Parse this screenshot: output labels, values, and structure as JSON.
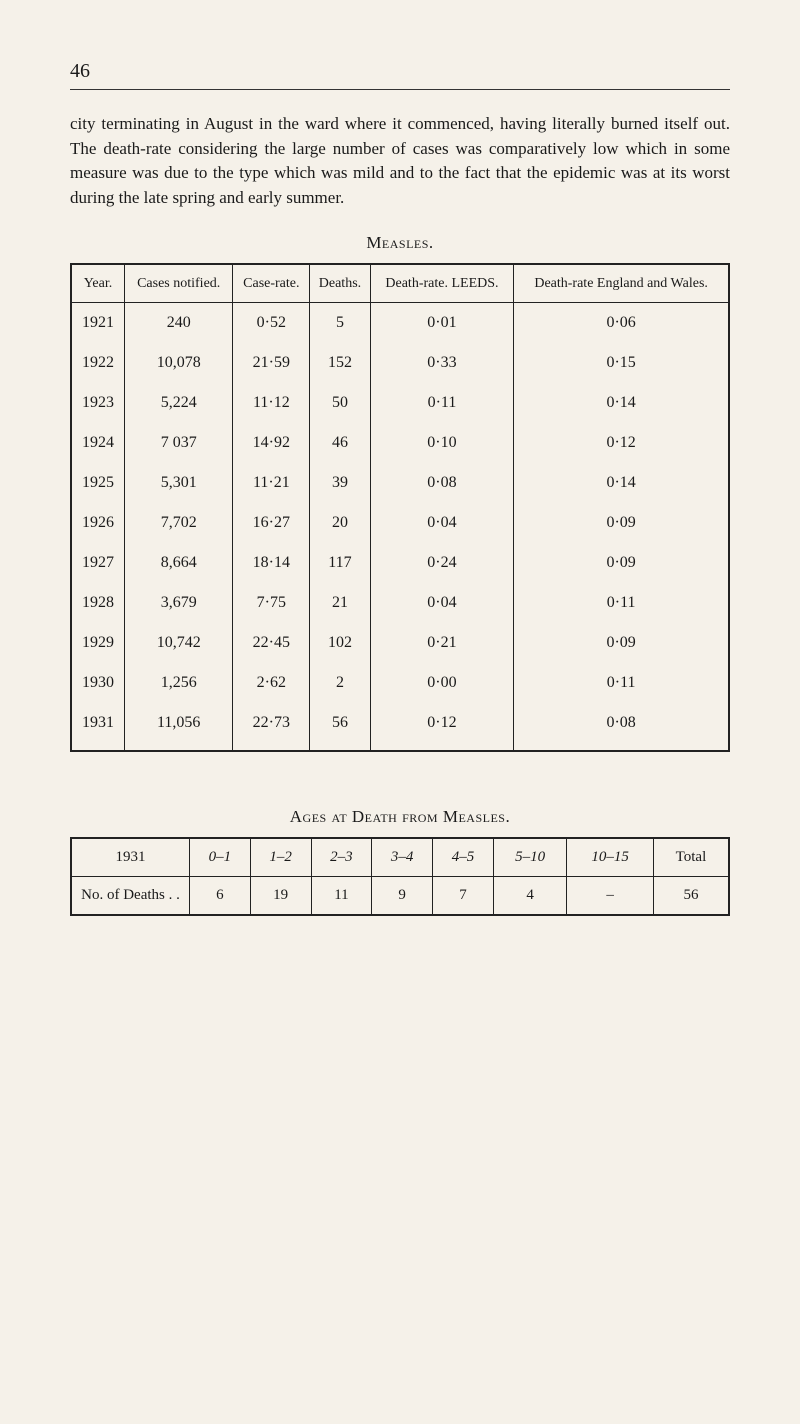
{
  "page_number": "46",
  "paragraph": "city terminating in August in the ward where it commenced, having literally burned itself out. The death-rate considering the large number of cases was comparatively low which in some measure was due to the type which was mild and to the fact that the epidemic was at its worst during the late spring and early summer.",
  "table1": {
    "caption": "Measles.",
    "headers": {
      "year": "Year.",
      "cases": "Cases notified.",
      "caserate": "Case-rate.",
      "deaths": "Deaths.",
      "drate_leeds": "Death-rate. LEEDS.",
      "drate_ew": "Death-rate England and Wales."
    },
    "rows": [
      {
        "year": "1921",
        "cases": "240",
        "caserate": "0·52",
        "deaths": "5",
        "leeds": "0·01",
        "ew": "0·06"
      },
      {
        "year": "1922",
        "cases": "10,078",
        "caserate": "21·59",
        "deaths": "152",
        "leeds": "0·33",
        "ew": "0·15"
      },
      {
        "year": "1923",
        "cases": "5,224",
        "caserate": "11·12",
        "deaths": "50",
        "leeds": "0·11",
        "ew": "0·14"
      },
      {
        "year": "1924",
        "cases": "7 037",
        "caserate": "14·92",
        "deaths": "46",
        "leeds": "0·10",
        "ew": "0·12"
      },
      {
        "year": "1925",
        "cases": "5,301",
        "caserate": "11·21",
        "deaths": "39",
        "leeds": "0·08",
        "ew": "0·14"
      },
      {
        "year": "1926",
        "cases": "7,702",
        "caserate": "16·27",
        "deaths": "20",
        "leeds": "0·04",
        "ew": "0·09"
      },
      {
        "year": "1927",
        "cases": "8,664",
        "caserate": "18·14",
        "deaths": "117",
        "leeds": "0·24",
        "ew": "0·09"
      },
      {
        "year": "1928",
        "cases": "3,679",
        "caserate": "7·75",
        "deaths": "21",
        "leeds": "0·04",
        "ew": "0·11"
      },
      {
        "year": "1929",
        "cases": "10,742",
        "caserate": "22·45",
        "deaths": "102",
        "leeds": "0·21",
        "ew": "0·09"
      },
      {
        "year": "1930",
        "cases": "1,256",
        "caserate": "2·62",
        "deaths": "2",
        "leeds": "0·00",
        "ew": "0·11"
      },
      {
        "year": "1931",
        "cases": "11,056",
        "caserate": "22·73",
        "deaths": "56",
        "leeds": "0·12",
        "ew": "0·08"
      }
    ]
  },
  "table2": {
    "caption": "Ages at Death from Measles.",
    "head_year": "1931",
    "head_total": "Total",
    "age_bins": [
      "0–1",
      "1–2",
      "2–3",
      "3–4",
      "4–5",
      "5–10",
      "10–15"
    ],
    "row_label": "No. of Deaths  . .",
    "values": [
      "6",
      "19",
      "11",
      "9",
      "7",
      "4",
      "–"
    ],
    "total": "56"
  }
}
